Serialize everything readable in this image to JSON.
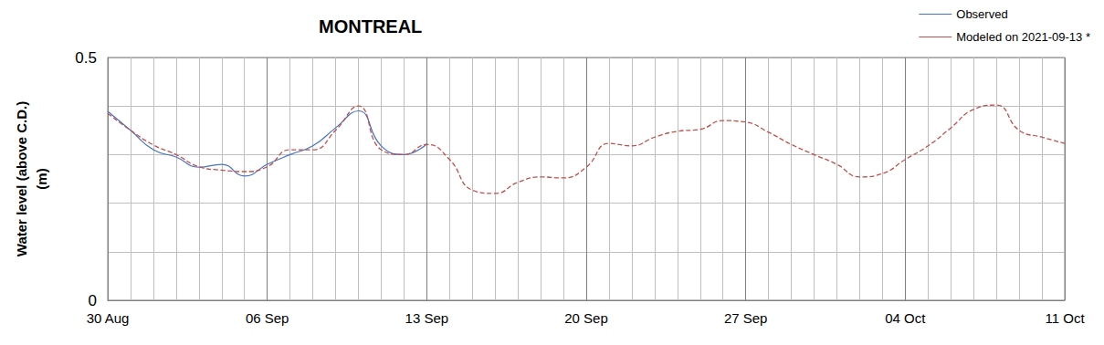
{
  "chart_data": {
    "type": "line",
    "title": "MONTREAL",
    "y_label": "Water level (above C.D.)\n(m)",
    "categories": [
      "30 Aug",
      null,
      null,
      null,
      null,
      null,
      null,
      "06 Sep",
      null,
      null,
      null,
      null,
      null,
      null,
      "13 Sep",
      null,
      null,
      null,
      null,
      null,
      null,
      "20 Sep",
      null,
      null,
      null,
      null,
      null,
      null,
      "27 Sep",
      null,
      null,
      null,
      null,
      null,
      null,
      "04 Oct",
      null,
      null,
      null,
      null,
      null,
      null,
      "11 Oct"
    ],
    "series": [
      {
        "name": "Observed",
        "color": "#4472c4",
        "line_style": "solid",
        "values": [
          0.389,
          0.35,
          0.31,
          0.295,
          0.274,
          0.28,
          0.256,
          0.28,
          0.3,
          0.318,
          0.355,
          0.39,
          0.318,
          0.3,
          0.322,
          null,
          null,
          null,
          null,
          null,
          null,
          null,
          null,
          null,
          null,
          null,
          null,
          null,
          null,
          null,
          null,
          null,
          null,
          null,
          null,
          null,
          null,
          null,
          null,
          null,
          null,
          null,
          null
        ]
      },
      {
        "name": "Modeled on 2021-09-13 *",
        "color": "#c0504d",
        "line_style": "dashed",
        "values": [
          0.385,
          0.35,
          0.32,
          0.3,
          0.275,
          0.268,
          0.265,
          0.275,
          0.31,
          0.31,
          0.35,
          0.4,
          0.31,
          0.3,
          0.321,
          0.29,
          0.227,
          0.22,
          0.243,
          0.254,
          0.252,
          0.274,
          0.323,
          0.318,
          0.336,
          0.348,
          0.352,
          0.37,
          0.367,
          0.346,
          0.321,
          0.3,
          0.28,
          0.254,
          0.261,
          0.29,
          0.318,
          0.355,
          0.393,
          0.402,
          0.35,
          0.336,
          0.323
        ]
      }
    ],
    "ylim": [
      0,
      0.5
    ],
    "yticks": [
      0,
      0.5
    ],
    "grid": true,
    "legend": "upper right",
    "marker": "none"
  }
}
